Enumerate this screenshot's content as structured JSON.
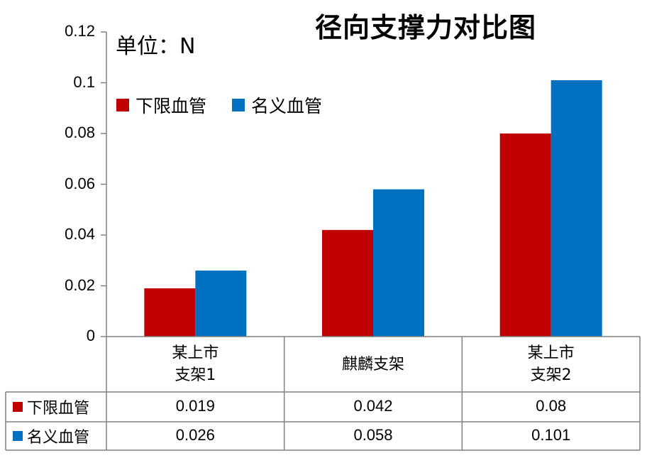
{
  "chart_data": {
    "type": "bar",
    "title": "径向支撑力对比图",
    "unit_label": "单位：N",
    "categories": [
      "某上市\n支架1",
      "麒麟支架",
      "某上市\n支架2"
    ],
    "series": [
      {
        "name": "下限血管",
        "color": "#C00000",
        "values": [
          0.019,
          0.042,
          0.08
        ]
      },
      {
        "name": "名义血管",
        "color": "#0070C0",
        "values": [
          0.026,
          0.058,
          0.101
        ]
      }
    ],
    "ylim": [
      0,
      0.12
    ],
    "yticks": [
      "0",
      "0.02",
      "0.04",
      "0.06",
      "0.08",
      "0.1",
      "0.12"
    ],
    "table_values": [
      [
        "0.019",
        "0.042",
        "0.08"
      ],
      [
        "0.026",
        "0.058",
        "0.101"
      ]
    ],
    "legend_position": "top-left",
    "grid": false
  }
}
